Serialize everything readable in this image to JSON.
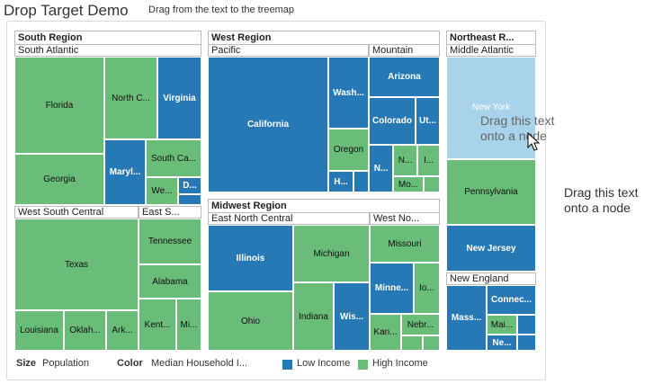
{
  "header": {
    "title": "Drop Target Demo",
    "subtitle": "Drag from the text to the treemap"
  },
  "regions": {
    "south": {
      "label": "South Region",
      "subs": [
        "South Atlantic",
        "West South Central",
        "East S..."
      ]
    },
    "west": {
      "label": "West Region",
      "subs": [
        "Pacific",
        "Mountain"
      ]
    },
    "midwest": {
      "label": "Midwest Region",
      "subs": [
        "East North Central",
        "West No..."
      ]
    },
    "northeast": {
      "label": "Northeast R...",
      "subs": [
        "Middle Atlantic",
        "New England"
      ]
    }
  },
  "states": {
    "florida": "Florida",
    "georgia": "Georgia",
    "north_carolina": "North C...",
    "virginia": "Virginia",
    "maryland": "Maryl...",
    "south_carolina": "South Ca...",
    "west_virginia": "We...",
    "delaware": "D...",
    "texas": "Texas",
    "louisiana": "Louisiana",
    "oklahoma": "Oklah...",
    "arkansas": "Ark...",
    "tennessee": "Tennessee",
    "alabama": "Alabama",
    "kentucky": "Kent...",
    "mississippi": "Mi...",
    "california": "California",
    "washington": "Wash...",
    "oregon": "Oregon",
    "hawaii": "H...",
    "arizona": "Arizona",
    "colorado": "Colorado",
    "utah": "Ut...",
    "nevada": "N...",
    "new_mexico": "N...",
    "idaho": "I...",
    "montana": "Mo...",
    "illinois": "Illinois",
    "michigan": "Michigan",
    "ohio": "Ohio",
    "indiana": "Indiana",
    "wisconsin": "Wis...",
    "missouri": "Missouri",
    "minnesota": "Minne...",
    "iowa": "Io...",
    "kansas": "Kan...",
    "nebraska": "Nebr...",
    "new_york": "New York",
    "pennsylvania": "Pennsylvania",
    "new_jersey": "New Jersey",
    "massachusetts": "Mass...",
    "connecticut": "Connec...",
    "maine": "Mai...",
    "new_hampshire": "Ne..."
  },
  "drag_text": {
    "overlay": "Drag this text\nonto a node",
    "source": "Drag this text\nonto a node"
  },
  "legend": {
    "size_label": "Size",
    "size_value": "Population",
    "color_label": "Color",
    "color_value": "Median Household I...",
    "low": "Low Income",
    "high": "High Income"
  },
  "colors": {
    "low": "#2679b4",
    "high": "#69bd78",
    "highlight": "#a8d3ea"
  }
}
